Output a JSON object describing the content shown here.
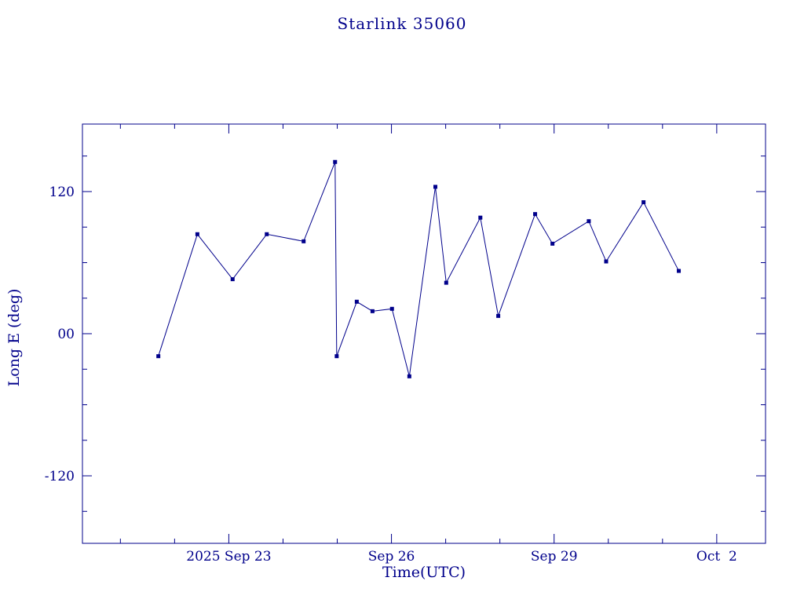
{
  "chart_data": {
    "type": "line",
    "title": "Starlink 35060",
    "xlabel": "Time(UTC)",
    "ylabel": "Long E (deg)",
    "x_unit": "days since 2025 Sep 20 00:00 UTC",
    "xlim": [
      0.3,
      12.9
    ],
    "ylim": [
      -177,
      177
    ],
    "x_ticks": [
      {
        "value": 3,
        "label": "2025 Sep 23"
      },
      {
        "value": 6,
        "label": "Sep 26"
      },
      {
        "value": 9,
        "label": "Sep 29"
      },
      {
        "value": 12,
        "label": "Oct  2"
      }
    ],
    "y_ticks": [
      {
        "value": 120,
        "label": "120"
      },
      {
        "value": 0,
        "label": "00"
      },
      {
        "value": -120,
        "label": "-120"
      }
    ],
    "x_minor_step": 1,
    "y_minor_step": 30,
    "major_tick_len": 12,
    "minor_tick_len": 6,
    "grid": "off",
    "legend": "none",
    "marker": "filled-square",
    "line_color": "#00008b",
    "background_color": "#ffffff",
    "series": [
      {
        "name": "Long E (deg)",
        "points": [
          [
            1.7,
            -19
          ],
          [
            2.42,
            84
          ],
          [
            3.07,
            46
          ],
          [
            3.7,
            84
          ],
          [
            4.38,
            78
          ],
          [
            4.96,
            145
          ],
          [
            4.99,
            -19
          ],
          [
            5.36,
            27
          ],
          [
            5.65,
            19
          ],
          [
            6.01,
            21
          ],
          [
            6.33,
            -36
          ],
          [
            6.81,
            124
          ],
          [
            7.01,
            43
          ],
          [
            7.64,
            98
          ],
          [
            7.97,
            15
          ],
          [
            8.65,
            101
          ],
          [
            8.97,
            76
          ],
          [
            9.64,
            95
          ],
          [
            9.96,
            61
          ],
          [
            10.65,
            111
          ],
          [
            11.3,
            53
          ]
        ]
      }
    ]
  }
}
